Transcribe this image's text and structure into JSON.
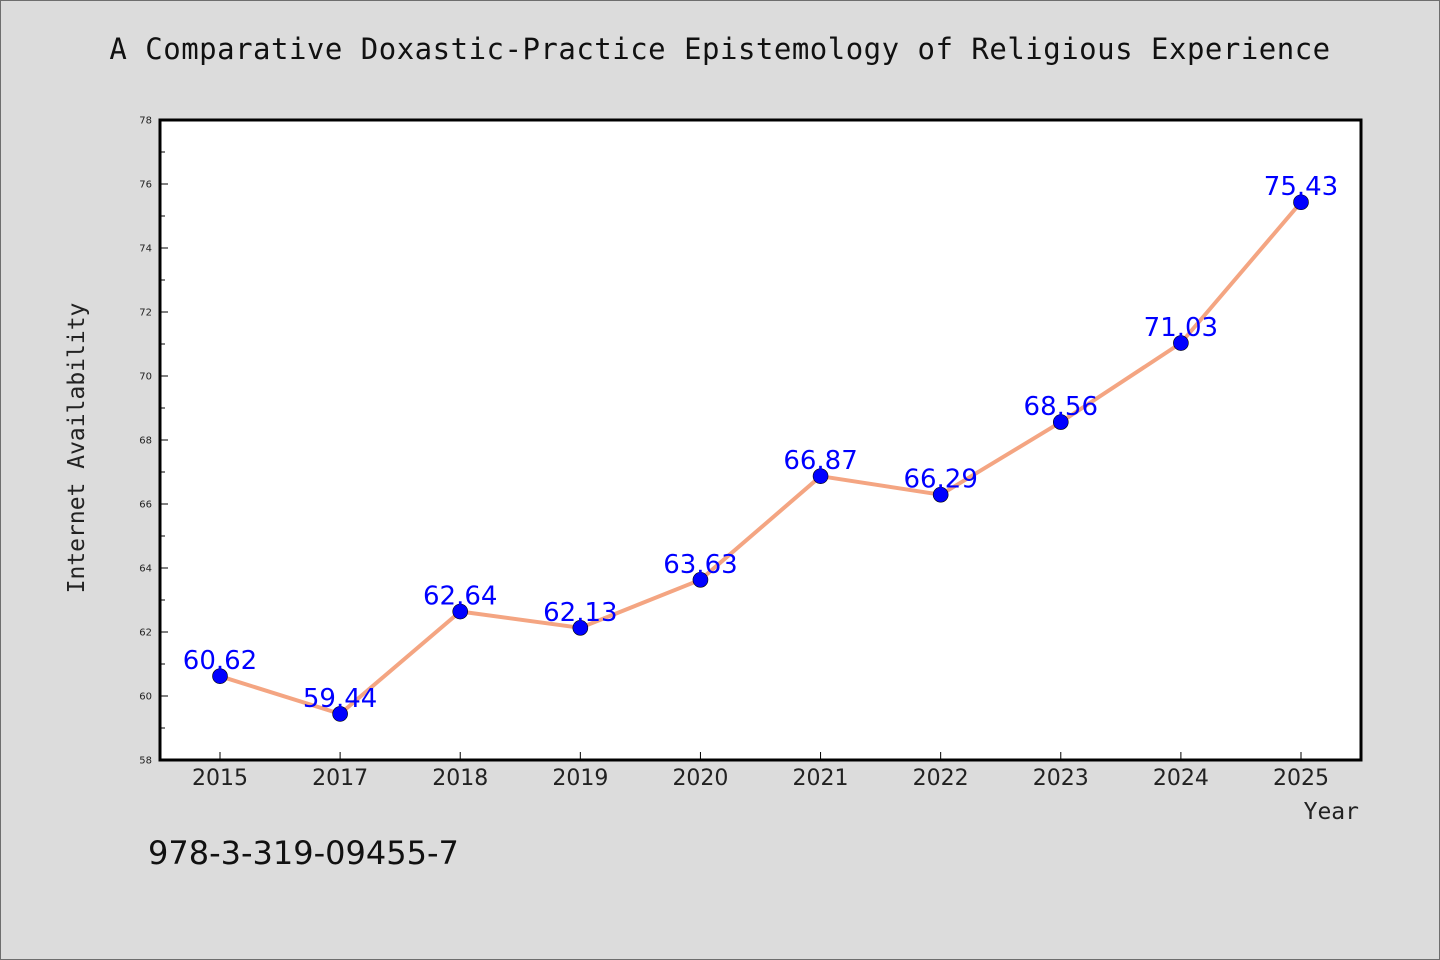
{
  "chart_data": {
    "type": "line",
    "title": "A Comparative Doxastic-Practice Epistemology of Religious Experience",
    "xlabel": "Year",
    "ylabel": "Internet Availability",
    "categories": [
      "2015",
      "2017",
      "2018",
      "2019",
      "2020",
      "2021",
      "2022",
      "2023",
      "2024",
      "2025"
    ],
    "series": [
      {
        "values": [
          60.62,
          59.44,
          62.64,
          62.13,
          63.63,
          66.87,
          66.29,
          68.56,
          71.03,
          75.43
        ],
        "labels": [
          "60.62",
          "59.44",
          "62.64",
          "62.13",
          "63.63",
          "66.87",
          "66.29",
          "68.56",
          "71.03",
          "75.43"
        ],
        "line_color": "#f4a582",
        "marker_color": "#0000ff"
      }
    ],
    "ylim": [
      58,
      78
    ],
    "yticks": [
      "58",
      "60",
      "62",
      "64",
      "66",
      "68",
      "70",
      "72",
      "74",
      "76",
      "78"
    ],
    "grid": false,
    "legend": "none"
  },
  "footer": {
    "isbn": "978-3-319-09455-7"
  }
}
